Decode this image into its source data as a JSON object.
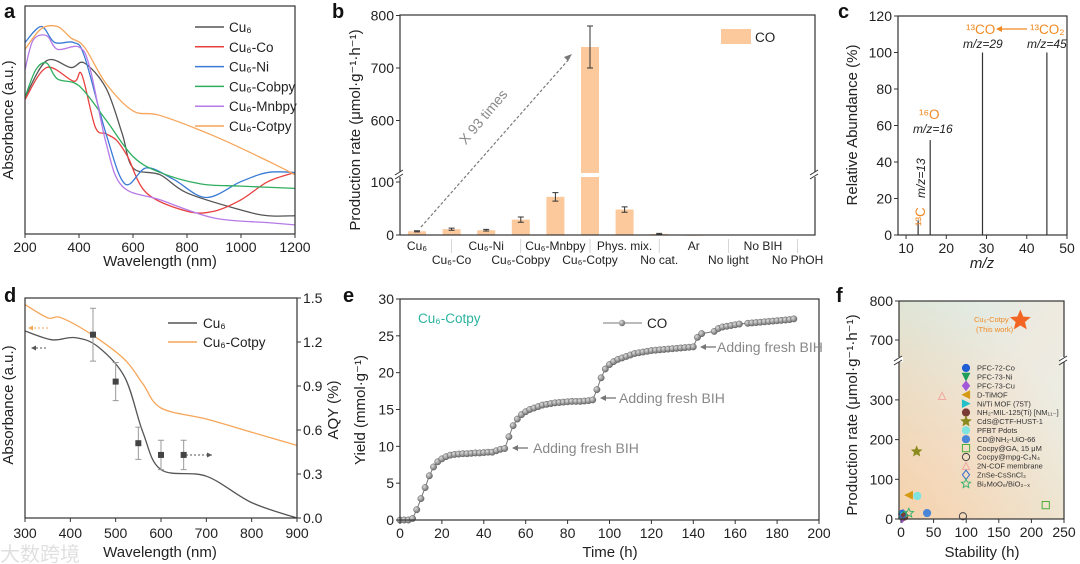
{
  "panel_labels": [
    "a",
    "b",
    "c",
    "d",
    "e",
    "f"
  ],
  "watermark": "大数跨境",
  "chart_data": [
    {
      "type": "line",
      "panel": "a",
      "xlabel": "Wavelength (nm)",
      "ylabel": "Absorbance (a.u.)",
      "xlim": [
        200,
        1200
      ],
      "ylim": [
        0,
        1
      ],
      "xticks": [
        200,
        400,
        600,
        800,
        1000,
        1200
      ],
      "legend_position": "top-right",
      "series": [
        {
          "name": "Cu₆",
          "color": "#555555",
          "points": [
            [
              200,
              0.6
            ],
            [
              280,
              0.76
            ],
            [
              370,
              0.73
            ],
            [
              420,
              0.75
            ],
            [
              500,
              0.64
            ],
            [
              560,
              0.44
            ],
            [
              600,
              0.29
            ],
            [
              700,
              0.26
            ],
            [
              800,
              0.18
            ],
            [
              1000,
              0.105
            ],
            [
              1100,
              0.08
            ],
            [
              1200,
              0.08
            ]
          ]
        },
        {
          "name": "Cu₆-Co",
          "color": "#e8403f",
          "points": [
            [
              200,
              0.59
            ],
            [
              280,
              0.73
            ],
            [
              380,
              0.67
            ],
            [
              410,
              0.7
            ],
            [
              460,
              0.47
            ],
            [
              500,
              0.44
            ],
            [
              540,
              0.41
            ],
            [
              580,
              0.34
            ],
            [
              650,
              0.18
            ],
            [
              800,
              0.1
            ],
            [
              900,
              0.1
            ],
            [
              1000,
              0.15
            ],
            [
              1100,
              0.23
            ],
            [
              1200,
              0.27
            ]
          ]
        },
        {
          "name": "Cu₆-Ni",
          "color": "#3a7bd5",
          "points": [
            [
              200,
              0.84
            ],
            [
              260,
              0.91
            ],
            [
              310,
              0.84
            ],
            [
              380,
              0.84
            ],
            [
              420,
              0.78
            ],
            [
              500,
              0.44
            ],
            [
              570,
              0.22
            ],
            [
              650,
              0.29
            ],
            [
              750,
              0.24
            ],
            [
              870,
              0.16
            ],
            [
              1000,
              0.23
            ],
            [
              1100,
              0.27
            ],
            [
              1200,
              0.27
            ]
          ]
        },
        {
          "name": "Cu₆-Cobpy",
          "color": "#2fae5f",
          "points": [
            [
              200,
              0.6
            ],
            [
              240,
              0.72
            ],
            [
              280,
              0.75
            ],
            [
              320,
              0.68
            ],
            [
              400,
              0.65
            ],
            [
              500,
              0.5
            ],
            [
              600,
              0.34
            ],
            [
              700,
              0.27
            ],
            [
              850,
              0.22
            ],
            [
              1000,
              0.21
            ],
            [
              1200,
              0.2
            ]
          ]
        },
        {
          "name": "Cu₆-Mnbpy",
          "color": "#b67ae6",
          "points": [
            [
              200,
              0.72
            ],
            [
              230,
              0.85
            ],
            [
              280,
              0.87
            ],
            [
              320,
              0.81
            ],
            [
              400,
              0.82
            ],
            [
              440,
              0.73
            ],
            [
              500,
              0.4
            ],
            [
              560,
              0.21
            ],
            [
              700,
              0.15
            ],
            [
              900,
              0.07
            ],
            [
              1100,
              0.05
            ],
            [
              1200,
              0.04
            ]
          ]
        },
        {
          "name": "Cu₆-Cotpy",
          "color": "#f6a65a",
          "points": [
            [
              200,
              0.81
            ],
            [
              260,
              0.9
            ],
            [
              320,
              0.91
            ],
            [
              370,
              0.86
            ],
            [
              420,
              0.82
            ],
            [
              500,
              0.66
            ],
            [
              600,
              0.54
            ],
            [
              700,
              0.52
            ],
            [
              900,
              0.43
            ],
            [
              1100,
              0.32
            ],
            [
              1200,
              0.26
            ]
          ]
        }
      ]
    },
    {
      "type": "bar",
      "panel": "b",
      "ylabel": "Production rate (μmol·g⁻¹·h⁻¹)",
      "yticks": [
        0,
        100,
        600,
        700,
        800
      ],
      "axis_break": [
        110,
        500
      ],
      "ylim": [
        0,
        800
      ],
      "legend": "CO",
      "legend_position": "top-right",
      "bar_color": "#fbc99b",
      "categories": [
        "Cu₆",
        "Cu₆-Co",
        "Cu₆-Ni",
        "Cu₆-Cobpy",
        "Cu₆-Mnbpy",
        "Cu₆-Cotpy",
        "Phys. mix.",
        "No cat.",
        "Ar",
        "No light",
        "No BIH",
        "No PhOH"
      ],
      "values": [
        7,
        11,
        9,
        29,
        72,
        740,
        48,
        2,
        0.5,
        0,
        1,
        1
      ],
      "errors": [
        1,
        2,
        1.5,
        5,
        8,
        40,
        5,
        1,
        0,
        0,
        0,
        0
      ],
      "annotation": "X 93 times"
    },
    {
      "type": "bar",
      "panel": "c",
      "xlabel": "m/z",
      "ylabel": "Relative Abundance (%)",
      "xlim": [
        8,
        50
      ],
      "ylim": [
        0,
        120
      ],
      "xticks": [
        10,
        20,
        30,
        40,
        50
      ],
      "yticks": [
        0,
        20,
        40,
        60,
        80,
        100,
        120
      ],
      "x": [
        13,
        16,
        29,
        45
      ],
      "values": [
        8,
        52,
        100,
        100
      ],
      "annotations": {
        "c13": "¹³C",
        "c13_mz": "m/z=13",
        "o16": "¹⁶O",
        "o16_mz": "m/z=16",
        "co13": "¹³CO",
        "co13_mz": "m/z=29",
        "co2_13": "¹³CO₂",
        "co2_13_mz": "m/z=45"
      }
    },
    {
      "type": "line",
      "panel": "d",
      "xlabel": "Wavelength (nm)",
      "ylabel": "Absorbance (a.u.)",
      "ylabel_right": "AQY (%)",
      "xlim": [
        300,
        900
      ],
      "xticks": [
        300,
        400,
        500,
        600,
        700,
        800,
        900
      ],
      "yticks_right": [
        "0.0",
        "0.3",
        "0.6",
        "0.9",
        "1.2",
        "1.5"
      ],
      "ylim_right": [
        0,
        1.5
      ],
      "legend_position": "top-right",
      "series": [
        {
          "name": "Cu₆",
          "color": "#555555",
          "points": [
            [
              300,
              0.85
            ],
            [
              360,
              0.81
            ],
            [
              410,
              0.82
            ],
            [
              460,
              0.78
            ],
            [
              520,
              0.64
            ],
            [
              560,
              0.39
            ],
            [
              600,
              0.22
            ],
            [
              700,
              0.19
            ],
            [
              800,
              0.07
            ],
            [
              900,
              0.0
            ]
          ]
        },
        {
          "name": "Cu₆-Cotpy",
          "color": "#f6a65a",
          "points": [
            [
              300,
              0.97
            ],
            [
              350,
              0.91
            ],
            [
              380,
              0.91
            ],
            [
              450,
              0.83
            ],
            [
              520,
              0.72
            ],
            [
              560,
              0.61
            ],
            [
              600,
              0.5
            ],
            [
              700,
              0.45
            ],
            [
              800,
              0.39
            ],
            [
              900,
              0.33
            ]
          ]
        }
      ],
      "aqy": {
        "x": [
          450,
          500,
          550,
          600,
          650
        ],
        "y": [
          1.25,
          0.93,
          0.51,
          0.43,
          0.43
        ],
        "err": [
          0.18,
          0.13,
          0.11,
          0.1,
          0.1
        ]
      }
    },
    {
      "type": "line",
      "panel": "e",
      "xlabel": "Time (h)",
      "ylabel": "Yield (mmol·g⁻¹)",
      "xlim": [
        0,
        200
      ],
      "ylim": [
        0,
        30
      ],
      "xticks": [
        0,
        20,
        40,
        60,
        80,
        100,
        120,
        140,
        160,
        180,
        200
      ],
      "yticks": [
        0,
        5,
        10,
        15,
        20,
        25,
        30
      ],
      "title": "Cu₆-Cotpy",
      "legend": "CO",
      "annotations": [
        "Adding fresh BIH",
        "Adding fresh BIH",
        "Adding fresh BIH"
      ],
      "points": [
        [
          0,
          0
        ],
        [
          2,
          0
        ],
        [
          4,
          0
        ],
        [
          6,
          0.2
        ],
        [
          8,
          1.4
        ],
        [
          10,
          2.9
        ],
        [
          12,
          4.4
        ],
        [
          14,
          6.0
        ],
        [
          16,
          7.2
        ],
        [
          18,
          7.9
        ],
        [
          20,
          8.3
        ],
        [
          22,
          8.6
        ],
        [
          24,
          8.8
        ],
        [
          26,
          8.9
        ],
        [
          28,
          8.95
        ],
        [
          30,
          9.0
        ],
        [
          32,
          9.0
        ],
        [
          34,
          9.05
        ],
        [
          36,
          9.1
        ],
        [
          38,
          9.1
        ],
        [
          40,
          9.15
        ],
        [
          42,
          9.2
        ],
        [
          44,
          9.2
        ],
        [
          46,
          9.4
        ],
        [
          48,
          9.6
        ],
        [
          50,
          9.7
        ],
        [
          52,
          11.3
        ],
        [
          54,
          12.8
        ],
        [
          56,
          13.7
        ],
        [
          58,
          14.3
        ],
        [
          60,
          14.7
        ],
        [
          62,
          15.0
        ],
        [
          64,
          15.2
        ],
        [
          66,
          15.4
        ],
        [
          68,
          15.6
        ],
        [
          70,
          15.7
        ],
        [
          72,
          15.8
        ],
        [
          74,
          15.9
        ],
        [
          76,
          15.95
        ],
        [
          78,
          16.0
        ],
        [
          80,
          16.05
        ],
        [
          82,
          16.1
        ],
        [
          84,
          16.1
        ],
        [
          86,
          16.1
        ],
        [
          88,
          16.15
        ],
        [
          90,
          16.2
        ],
        [
          92,
          16.3
        ],
        [
          94,
          17.7
        ],
        [
          96,
          19.3
        ],
        [
          98,
          20.5
        ],
        [
          100,
          21.1
        ],
        [
          102,
          21.5
        ],
        [
          104,
          21.8
        ],
        [
          106,
          22.0
        ],
        [
          108,
          22.2
        ],
        [
          110,
          22.4
        ],
        [
          112,
          22.6
        ],
        [
          114,
          22.7
        ],
        [
          116,
          22.8
        ],
        [
          118,
          22.9
        ],
        [
          120,
          23.0
        ],
        [
          122,
          23.05
        ],
        [
          124,
          23.1
        ],
        [
          126,
          23.15
        ],
        [
          128,
          23.2
        ],
        [
          130,
          23.25
        ],
        [
          132,
          23.3
        ],
        [
          134,
          23.35
        ],
        [
          136,
          23.4
        ],
        [
          138,
          23.45
        ],
        [
          140,
          23.5
        ],
        [
          142,
          24.8
        ],
        [
          144,
          25.3
        ],
        [
          150,
          25.6
        ],
        [
          152,
          26.0
        ],
        [
          154,
          26.2
        ],
        [
          156,
          26.3
        ],
        [
          158,
          26.4
        ],
        [
          160,
          26.5
        ],
        [
          162,
          26.6
        ],
        [
          166,
          26.7
        ],
        [
          168,
          26.75
        ],
        [
          170,
          26.8
        ],
        [
          172,
          26.85
        ],
        [
          174,
          26.9
        ],
        [
          176,
          26.95
        ],
        [
          178,
          27.0
        ],
        [
          180,
          27.05
        ],
        [
          182,
          27.1
        ],
        [
          184,
          27.15
        ],
        [
          186,
          27.2
        ],
        [
          188,
          27.3
        ]
      ]
    },
    {
      "type": "scatter",
      "panel": "f",
      "xlabel": "Stability (h)",
      "ylabel": "Production rate (μmol·g⁻¹·h⁻¹)",
      "xlim": [
        0,
        250
      ],
      "xticks": [
        0,
        50,
        100,
        150,
        200,
        250
      ],
      "yticks": [
        0,
        100,
        200,
        300,
        700,
        800
      ],
      "axis_break": [
        380,
        650
      ],
      "highlight": {
        "name": "Cu₆-Cotpy",
        "note": "(This work)",
        "x": 183,
        "y": 750,
        "color": "#f26522"
      },
      "series": [
        {
          "name": "PFC-72-Co",
          "marker": "circle",
          "color": "#1f5fd6",
          "x": 2,
          "y": 13
        },
        {
          "name": "PFC-73-Ni",
          "marker": "tri-down",
          "color": "#1e9e5a",
          "x": 3,
          "y": 8
        },
        {
          "name": "PFC-73-Cu",
          "marker": "diamond",
          "color": "#a259d9",
          "x": 2,
          "y": 3
        },
        {
          "name": "D-TiMOF",
          "marker": "tri-left",
          "color": "#d69a12",
          "x": 12,
          "y": 60
        },
        {
          "name": "Ni/Ti MOF (75T)",
          "marker": "tri-right",
          "color": "#22c0c8",
          "x": 3,
          "y": 10
        },
        {
          "name": "NH₂-MIL-125(Ti) [NM₁₁₋]",
          "marker": "circle",
          "color": "#7a3b35",
          "x": 5,
          "y": 6
        },
        {
          "name": "CdS@CTF-HUST-1",
          "marker": "star",
          "color": "#8a8a1e",
          "x": 24,
          "y": 170
        },
        {
          "name": "PFBT Pdots",
          "marker": "circle",
          "color": "#7fe3e0",
          "x": 25,
          "y": 58
        },
        {
          "name": "CD@NH₂-UiO-66",
          "marker": "circle",
          "color": "#4a86d8",
          "x": 40,
          "y": 15
        },
        {
          "name": "Cocpy@GA, 15 μM",
          "marker": "square-open",
          "color": "#4caf3a",
          "x": 222,
          "y": 35
        },
        {
          "name": "Cocpy@mpg-C₃N₄",
          "marker": "circle-open",
          "color": "#444444",
          "x": 95,
          "y": 7
        },
        {
          "name": "2N-COF membrane",
          "marker": "tri-up-open",
          "color": "#f0a8a0",
          "x": 63,
          "y": 310
        },
        {
          "name": "ZnSe-CsSnCl₃",
          "marker": "diamond-open",
          "color": "#2f6fd0",
          "x": 3,
          "y": 12
        },
        {
          "name": "Bi₂MoO₆/BiO₂₋ₓ",
          "marker": "star-open",
          "color": "#3cb371",
          "x": 12,
          "y": 15
        }
      ]
    }
  ]
}
